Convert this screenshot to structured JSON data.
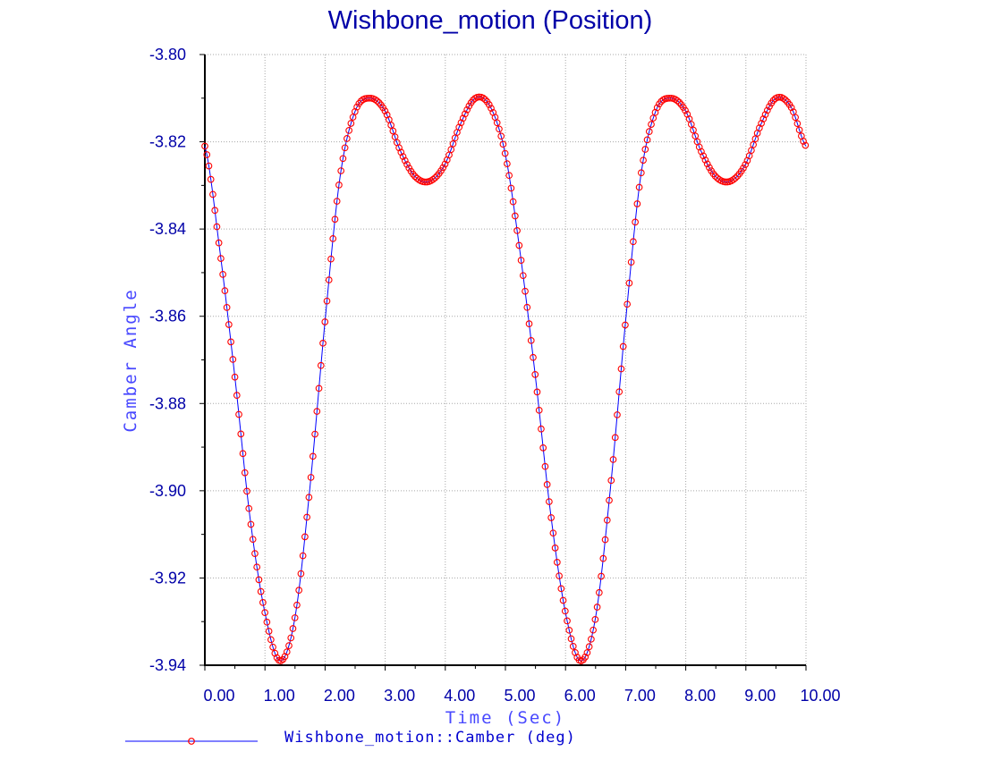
{
  "chart_data": {
    "type": "line",
    "title": "Wishbone_motion (Position)",
    "xlabel": "Time (Sec)",
    "ylabel": "Camber Angle",
    "xlim": [
      0,
      10
    ],
    "ylim": [
      -3.94,
      -3.8
    ],
    "x_ticks": [
      "0.00",
      "1.00",
      "2.00",
      "3.00",
      "4.00",
      "5.00",
      "6.00",
      "7.00",
      "8.00",
      "9.00",
      "10.00"
    ],
    "y_ticks": [
      "-3.80",
      "-3.82",
      "-3.84",
      "-3.86",
      "-3.88",
      "-3.90",
      "-3.92",
      "-3.94"
    ],
    "grid": true,
    "legend_position": "bottom-left",
    "series": [
      {
        "name": "Wishbone_motion::Camber (deg)",
        "line_color": "#0000ff",
        "marker": "circle",
        "marker_color": "#ff0000",
        "x": [
          0.0,
          0.25,
          0.5,
          0.75,
          1.0,
          1.25,
          1.5,
          1.75,
          2.0,
          2.25,
          2.5,
          2.75,
          3.0,
          3.25,
          3.5,
          3.75,
          4.0,
          4.25,
          4.5,
          4.75,
          5.0,
          5.25,
          5.5,
          5.75,
          6.0,
          6.25,
          6.5,
          6.75,
          7.0,
          7.25,
          7.5,
          7.75,
          8.0,
          8.25,
          8.5,
          8.75,
          9.0,
          9.25,
          9.5,
          9.75,
          10.0
        ],
        "y": [
          -3.821,
          -3.845,
          -3.874,
          -3.906,
          -3.928,
          -3.939,
          -3.929,
          -3.899,
          -3.861,
          -3.828,
          -3.813,
          -3.81,
          -3.813,
          -3.822,
          -3.828,
          -3.829,
          -3.825,
          -3.816,
          -3.81,
          -3.812,
          -3.823,
          -3.846,
          -3.874,
          -3.905,
          -3.928,
          -3.939,
          -3.929,
          -3.899,
          -3.861,
          -3.828,
          -3.813,
          -3.81,
          -3.813,
          -3.822,
          -3.828,
          -3.829,
          -3.825,
          -3.816,
          -3.81,
          -3.812,
          -3.821
        ]
      }
    ]
  }
}
